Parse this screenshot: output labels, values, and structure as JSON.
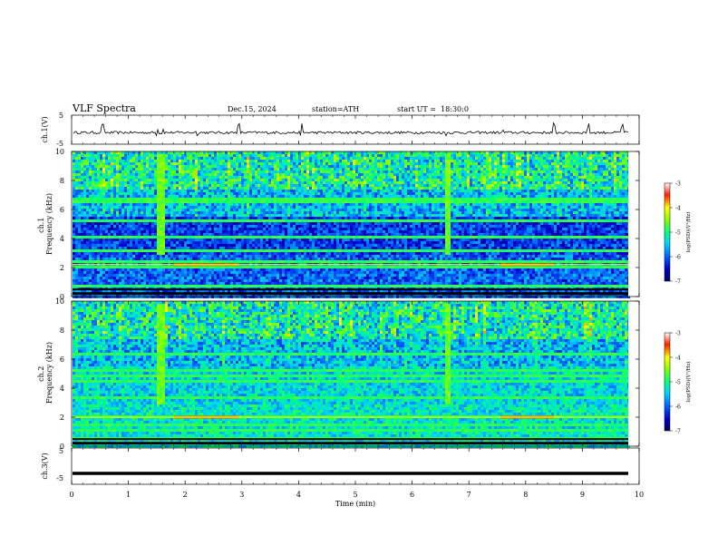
{
  "header": {
    "title": "VLF Spectra",
    "date": "Dec.15, 2024",
    "station": "station=ATH",
    "start_ut": "start UT =  18:30:0"
  },
  "chart_data": [
    {
      "type": "line",
      "name": "ch1-waveform",
      "ylabel": "ch.1(V)",
      "ylim": [
        -5,
        5
      ],
      "yticks": [
        "5",
        "-5"
      ],
      "xlim": [
        0,
        10
      ],
      "baseline": -1.0,
      "spikes_x": [
        0.55,
        1.5,
        1.6,
        2.2,
        2.95,
        4.05,
        6.6,
        7.6,
        8.5,
        9.1,
        9.7
      ]
    },
    {
      "type": "heatmap",
      "name": "ch1-spectrogram",
      "ylabel": "ch.1\nFrequency (kHz)",
      "ylim": [
        0,
        10
      ],
      "yticks": [
        "0",
        "2",
        "4",
        "6",
        "8",
        "10"
      ],
      "xlim": [
        0,
        10
      ],
      "colorbar": {
        "label": "log(PSD)(V²/Hz)",
        "range": [
          -7,
          -3
        ],
        "ticks": [
          "-3",
          "-4",
          "-5",
          "-6",
          "-7"
        ]
      },
      "tones_khz": [
        6.75,
        6.6,
        5.6,
        5.3,
        4.15,
        3.3,
        2.45,
        2.05,
        1.65,
        1.1,
        0.8
      ],
      "strong_band_khz": 2.2,
      "strong_band_time_min": [
        [
          1.8,
          2.95
        ],
        [
          7.55,
          8.5
        ]
      ],
      "bursts_time_min": [
        1.55,
        6.6
      ]
    },
    {
      "type": "heatmap",
      "name": "ch2-spectrogram",
      "ylabel": "ch.2\nFrequency (kHz)",
      "ylim": [
        0,
        10
      ],
      "yticks": [
        "0",
        "2",
        "4",
        "6",
        "8",
        "10"
      ],
      "xlim": [
        0,
        10
      ],
      "colorbar": {
        "label": "log(PSD)(V²/Hz)",
        "range": [
          -7,
          -3
        ],
        "ticks": [
          "-3",
          "-4",
          "-5",
          "-6",
          "-7"
        ]
      },
      "tones_khz": [
        6.4,
        5.3,
        4.9,
        4.6,
        3.5,
        2.4,
        2.1,
        1.6,
        1.2,
        0.7
      ],
      "strong_band_khz": 2.0,
      "strong_band_time_min": [
        [
          1.8,
          2.95
        ],
        [
          7.55,
          8.5
        ]
      ],
      "bursts_time_min": [
        1.55,
        6.6
      ]
    },
    {
      "type": "line",
      "name": "ch3-waveform",
      "ylabel": "ch.3(V)",
      "ylim": [
        -5,
        5
      ],
      "yticks": [
        "5",
        "-5"
      ],
      "xlim": [
        0,
        10
      ],
      "baseline": -2.0
    }
  ],
  "x_axis": {
    "label": "Time (min)",
    "ticks": [
      "0",
      "1",
      "2",
      "3",
      "4",
      "5",
      "6",
      "7",
      "8",
      "9",
      "10"
    ]
  }
}
